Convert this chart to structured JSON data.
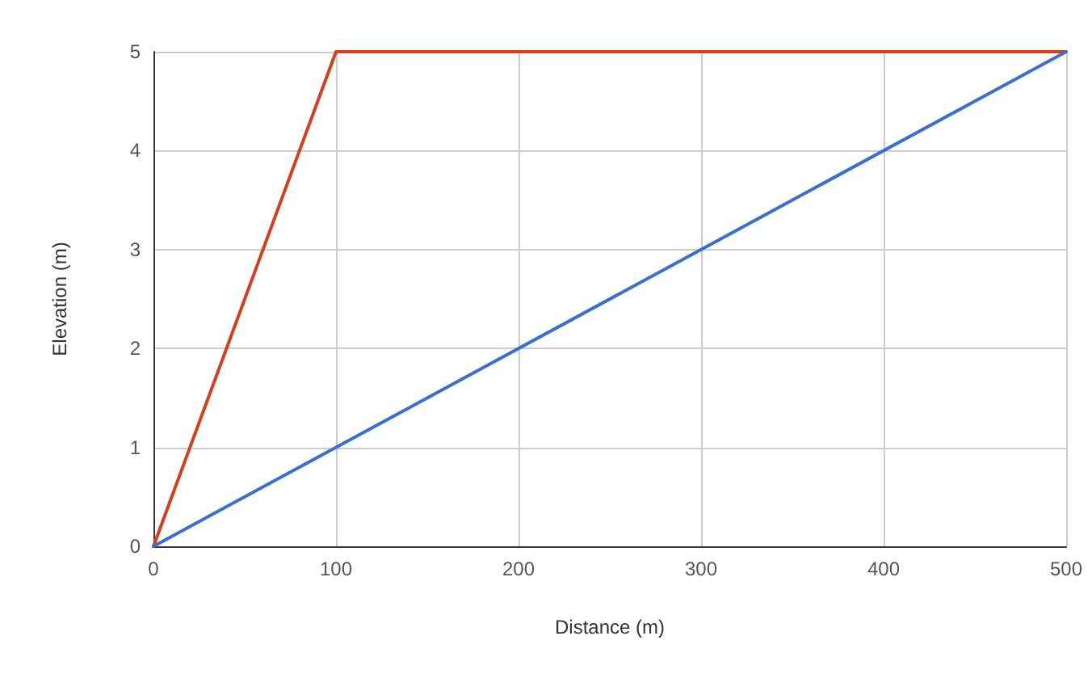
{
  "chart_data": {
    "type": "line",
    "xlabel": "Distance (m)",
    "ylabel": "Elevation (m)",
    "series": [
      {
        "color": "#d23f21",
        "x": [
          0,
          100,
          500
        ],
        "values": [
          0,
          5,
          5
        ]
      },
      {
        "color": "#3b6fcd",
        "x": [
          0,
          500
        ],
        "values": [
          0,
          5
        ]
      }
    ],
    "xlim": [
      0,
      500
    ],
    "xticks": [
      0,
      100,
      200,
      300,
      400,
      500
    ],
    "ylim": [
      0,
      5
    ],
    "yticks": [
      0,
      1,
      2,
      3,
      4,
      5
    ],
    "grid": true,
    "marker": "none",
    "line_style": "solid"
  }
}
